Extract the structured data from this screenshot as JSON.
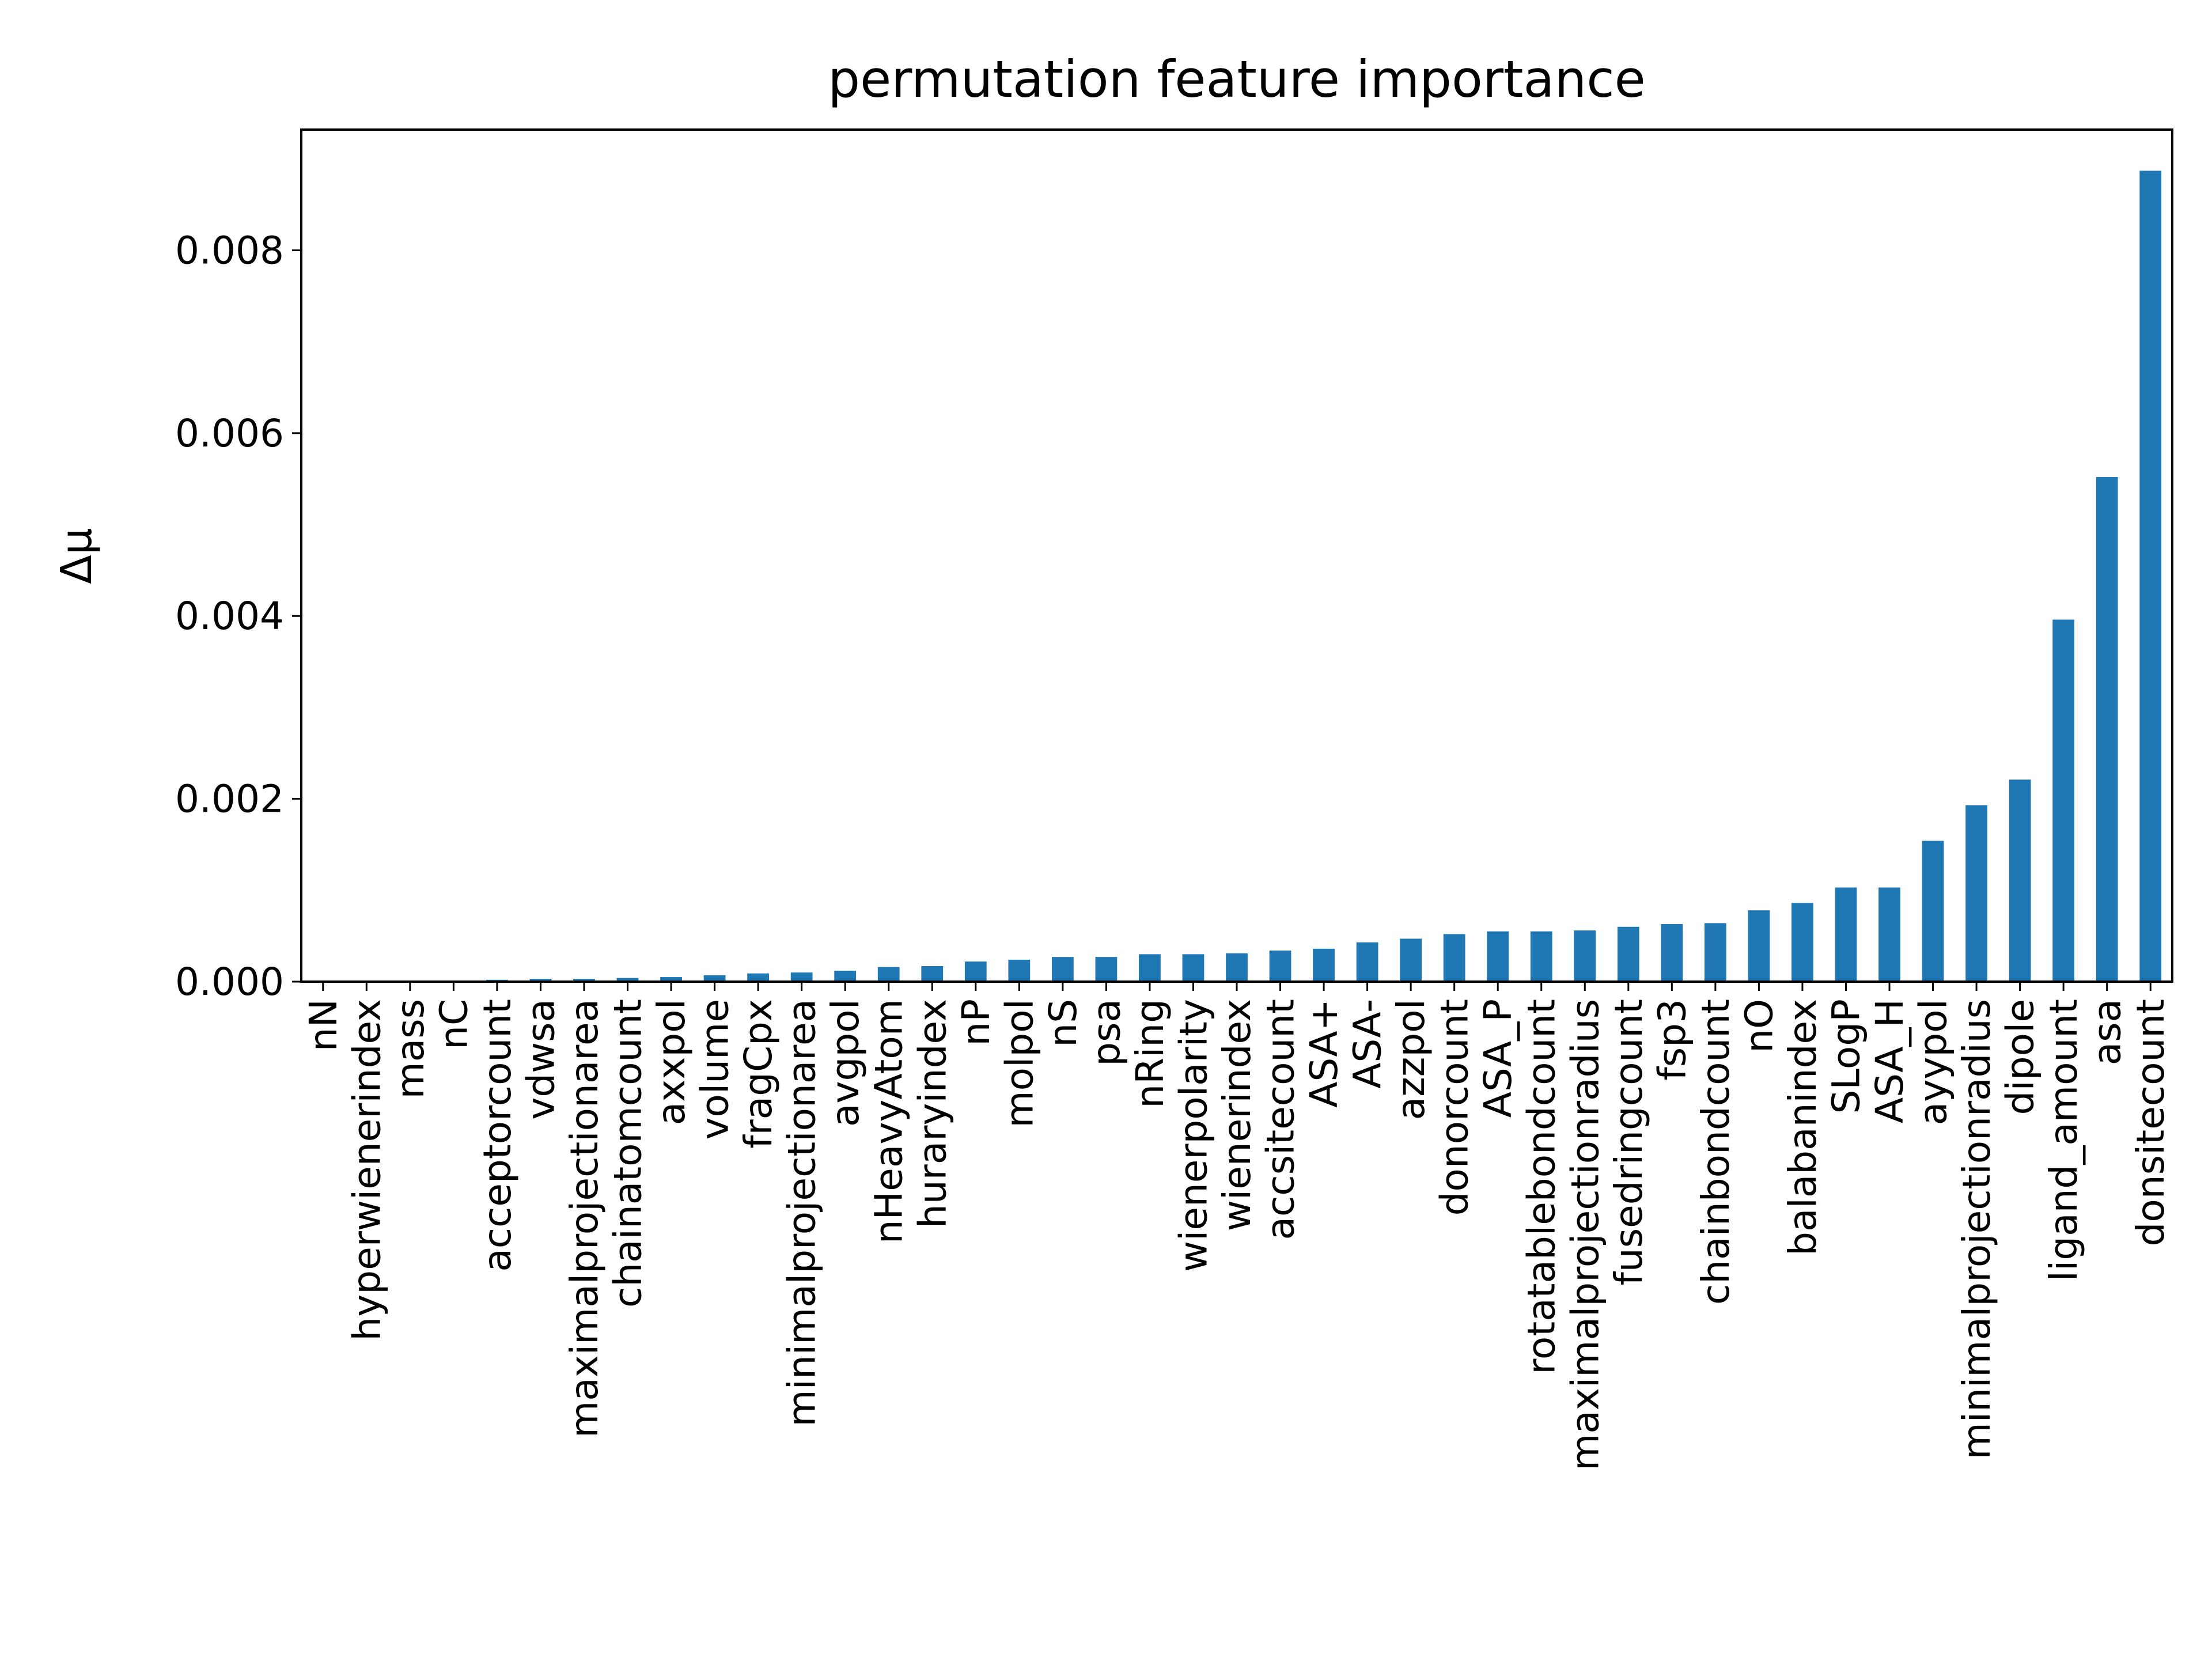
{
  "chart_data": {
    "type": "bar",
    "title": "permutation feature importance",
    "xlabel": "",
    "ylabel": "Δμ",
    "ylim": [
      0,
      0.00932
    ],
    "yticks": [
      "0.000",
      "0.002",
      "0.004",
      "0.006",
      "0.008"
    ],
    "grid": false,
    "legend": "none",
    "bar_color": "#1f77b4",
    "categories": [
      "nN",
      "hyperwienerindex",
      "mass",
      "nC",
      "acceptorcount",
      "vdwsa",
      "maximalprojectionarea",
      "chainatomcount",
      "axxpol",
      "volume",
      "fragCpx",
      "minimalprojectionarea",
      "avgpol",
      "nHeavyAtom",
      "huraryindex",
      "nP",
      "molpol",
      "nS",
      "psa",
      "nRing",
      "wienerpolarity",
      "wienerindex",
      "accsitecount",
      "ASA+",
      "ASA-",
      "azzpol",
      "donorcount",
      "ASA_P",
      "rotatablebondcount",
      "maximalprojectionradius",
      "fusedringcount",
      "fsp3",
      "chainbondcount",
      "nO",
      "balabanindex",
      "SLogP",
      "ASA_H",
      "ayypol",
      "minimalprojectionradius",
      "dipole",
      "ligand_amount",
      "asa",
      "donsitecount"
    ],
    "values": [
      0.0,
      0.0,
      0.0,
      0.0,
      2e-05,
      3e-05,
      3e-05,
      4e-05,
      5e-05,
      7e-05,
      9e-05,
      0.0001,
      0.00012,
      0.00016,
      0.00017,
      0.00022,
      0.00024,
      0.00027,
      0.00027,
      0.0003,
      0.0003,
      0.00031,
      0.00034,
      0.00036,
      0.00043,
      0.00047,
      0.00052,
      0.00055,
      0.00055,
      0.00056,
      0.0006,
      0.00063,
      0.00064,
      0.00078,
      0.00086,
      0.00103,
      0.00103,
      0.00154,
      0.00193,
      0.00221,
      0.00396,
      0.00552,
      0.00887
    ]
  }
}
